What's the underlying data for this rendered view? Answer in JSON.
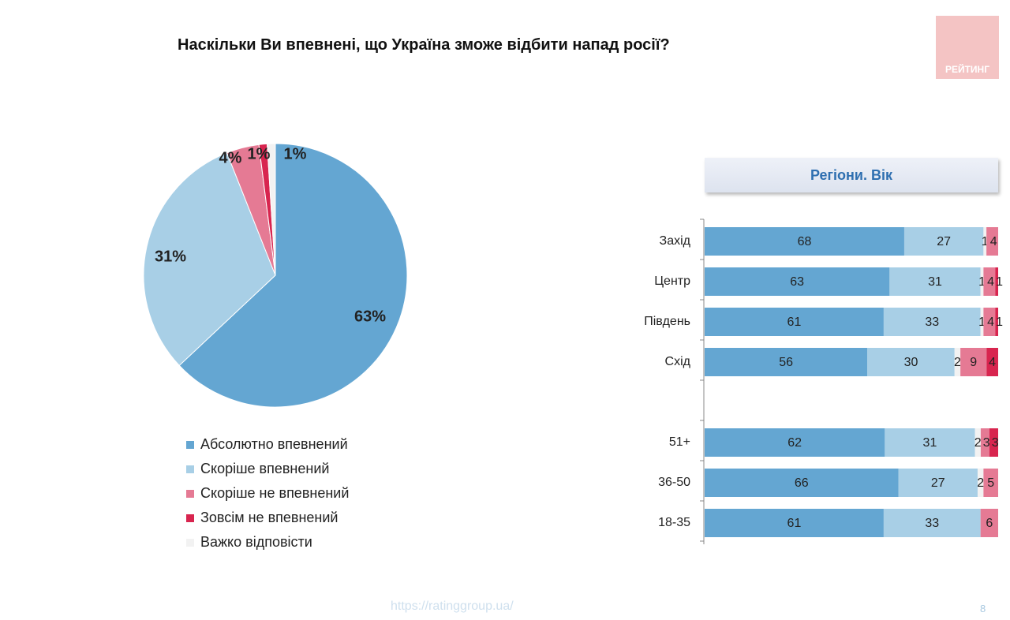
{
  "title": "Наскільки Ви впевнені, що Україна зможе відбити напад росії?",
  "logo": "РЕЙТИНГ",
  "footer": "https://ratinggroup.ua/",
  "page_number": "8",
  "chart_data": [
    {
      "type": "pie",
      "categories": [
        "Абсолютно впевнений",
        "Скоріше впевнений",
        "Скоріше не впевнений",
        "Зовсім не впевнений",
        "Важко відповісти"
      ],
      "values": [
        63,
        31,
        4,
        1,
        1
      ],
      "labels": [
        "63%",
        "31%",
        "4%",
        "1%",
        "1%"
      ],
      "colors": [
        "#64a6d2",
        "#a8cfe6",
        "#e57a94",
        "#d8254f",
        "#f2f2f2"
      ],
      "legend": "bottom"
    },
    {
      "type": "bar",
      "orientation": "horizontal",
      "stacked": true,
      "title": "Регіони. Вік",
      "categories": [
        "Захід",
        "Центр",
        "Південь",
        "Схід",
        "51+",
        "36-50",
        "18-35"
      ],
      "series": [
        {
          "key": "abs",
          "values": [
            68,
            63,
            61,
            56,
            62,
            66,
            61
          ],
          "color": "#64a6d2"
        },
        {
          "key": "rather",
          "values": [
            27,
            31,
            33,
            30,
            31,
            27,
            33
          ],
          "color": "#a8cfe6"
        },
        {
          "key": "hard",
          "values": [
            1,
            1,
            1,
            2,
            2,
            2,
            0
          ],
          "color": "#f2f2f2"
        },
        {
          "key": "rather_not",
          "values": [
            4,
            4,
            4,
            9,
            3,
            5,
            6
          ],
          "color": "#e57a94"
        },
        {
          "key": "not_at_all",
          "values": [
            0,
            1,
            1,
            4,
            3,
            0,
            0
          ],
          "color": "#d8254f"
        }
      ]
    }
  ]
}
